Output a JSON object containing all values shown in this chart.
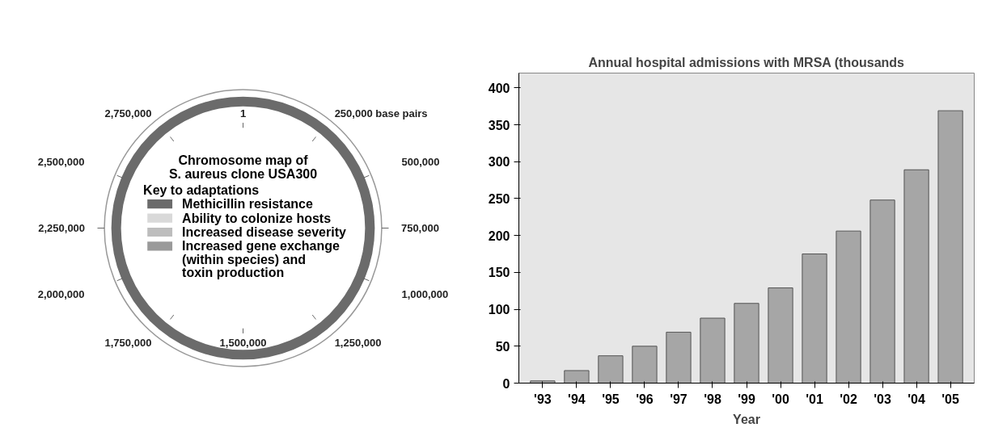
{
  "chart_data": [
    {
      "type": "other",
      "title": "Chromosome map of S. aureus clone USA300",
      "legend_title": "Key to adaptations",
      "categories": [
        "Methicillin resistance",
        "Ability to colonize hosts",
        "Increased disease severity",
        "Increased gene exchange (within species) and toxin production"
      ],
      "colors": [
        "#6b6b6b",
        "#d9d9d9",
        "#bdbdbd",
        "#9a9a9a"
      ],
      "annotations": [
        "1",
        "250,000 base pairs",
        "500,000",
        "750,000",
        "1,000,000",
        "1,250,000",
        "1,500,000",
        "1,750,000",
        "2,000,000",
        "2,250,000",
        "2,500,000",
        "2,750,000"
      ]
    },
    {
      "type": "bar",
      "title": "Annual hospital admissions with MRSA (thousands",
      "xlabel": "Year",
      "categories": [
        "'93",
        "'94",
        "'95",
        "'96",
        "'97",
        "'98",
        "'99",
        "'00",
        "'01",
        "'02",
        "'03",
        "'04",
        "'05"
      ],
      "values": [
        3,
        17,
        37,
        50,
        69,
        88,
        108,
        129,
        175,
        206,
        248,
        289,
        369
      ],
      "color": "#a6a6a6",
      "ylim": [
        0,
        420
      ],
      "yticks": [
        0,
        50,
        100,
        150,
        200,
        250,
        300,
        350,
        400
      ],
      "grid": false
    }
  ]
}
